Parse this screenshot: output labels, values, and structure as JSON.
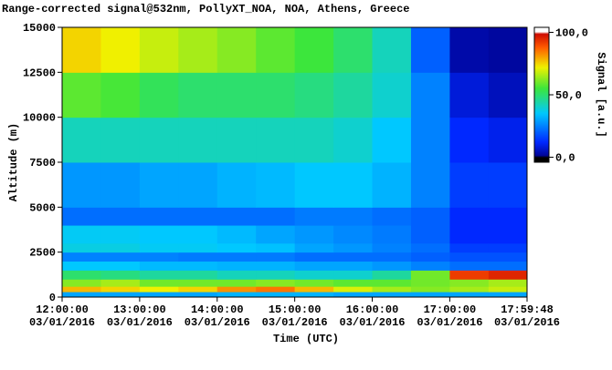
{
  "chart_data": {
    "type": "heatmap",
    "title": "Range-corrected signal@532nm, PollyXT_NOA, NOA, Athens, Greece",
    "x_label": "Time (UTC)",
    "y_label": "Altitude (m)",
    "colorbar_label": "Signal [a.u.]",
    "colormap": "jet",
    "xlim": [
      12,
      17.99667
    ],
    "xticks": [
      {
        "value": 12,
        "label": "12:00:00",
        "date": "03/01/2016"
      },
      {
        "value": 13,
        "label": "13:00:00",
        "date": "03/01/2016"
      },
      {
        "value": 14,
        "label": "14:00:00",
        "date": "03/01/2016"
      },
      {
        "value": 15,
        "label": "15:00:00",
        "date": "03/01/2016"
      },
      {
        "value": 16,
        "label": "16:00:00",
        "date": "03/01/2016"
      },
      {
        "value": 17,
        "label": "17:00:00",
        "date": "03/01/2016"
      },
      {
        "value": 17.99667,
        "label": "17:59:48",
        "date": "03/01/2016"
      }
    ],
    "ylim": [
      0,
      15000
    ],
    "yticks": [
      0,
      2500,
      5000,
      7500,
      10000,
      12500,
      15000
    ],
    "zlim": [
      -4,
      104
    ],
    "zticks": [
      {
        "value": 0,
        "label": "0,0"
      },
      {
        "value": 50,
        "label": "50,0"
      },
      {
        "value": 100,
        "label": "100,0"
      }
    ],
    "x_bins": [
      12,
      12.5,
      13,
      13.5,
      14,
      14.5,
      15,
      15.5,
      16,
      16.5,
      17,
      17.5,
      17.99667
    ],
    "y_bins": [
      0,
      300,
      600,
      1000,
      1500,
      2000,
      2500,
      3000,
      4000,
      5000,
      7500,
      10000,
      12500,
      15000
    ],
    "z": [
      [
        30,
        30,
        30,
        30,
        32,
        32,
        32,
        30,
        30,
        30,
        30,
        30
      ],
      [
        78,
        75,
        72,
        75,
        82,
        85,
        78,
        70,
        65,
        62,
        65,
        68
      ],
      [
        62,
        65,
        60,
        60,
        60,
        62,
        60,
        58,
        58,
        60,
        62,
        65
      ],
      [
        50,
        48,
        45,
        45,
        42,
        42,
        40,
        40,
        45,
        60,
        92,
        95
      ],
      [
        35,
        35,
        33,
        33,
        32,
        32,
        30,
        30,
        28,
        25,
        22,
        22
      ],
      [
        25,
        25,
        25,
        24,
        24,
        24,
        22,
        22,
        22,
        20,
        18,
        18
      ],
      [
        38,
        38,
        36,
        36,
        35,
        34,
        30,
        28,
        25,
        22,
        15,
        15
      ],
      [
        36,
        36,
        35,
        35,
        33,
        30,
        28,
        26,
        24,
        20,
        12,
        12
      ],
      [
        22,
        22,
        22,
        22,
        22,
        22,
        24,
        24,
        22,
        20,
        12,
        12
      ],
      [
        28,
        28,
        30,
        30,
        32,
        33,
        35,
        35,
        32,
        25,
        15,
        15
      ],
      [
        42,
        42,
        42,
        42,
        42,
        42,
        42,
        40,
        35,
        25,
        12,
        10
      ],
      [
        58,
        56,
        52,
        50,
        50,
        50,
        48,
        45,
        40,
        25,
        8,
        5
      ],
      [
        75,
        72,
        68,
        65,
        62,
        58,
        55,
        50,
        42,
        20,
        3,
        2
      ]
    ]
  }
}
